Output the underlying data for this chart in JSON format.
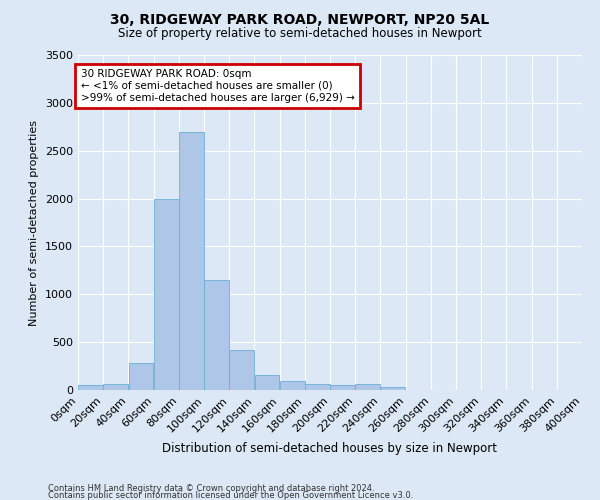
{
  "title": "30, RIDGEWAY PARK ROAD, NEWPORT, NP20 5AL",
  "subtitle": "Size of property relative to semi-detached houses in Newport",
  "xlabel": "Distribution of semi-detached houses by size in Newport",
  "ylabel": "Number of semi-detached properties",
  "footer_line1": "Contains HM Land Registry data © Crown copyright and database right 2024.",
  "footer_line2": "Contains public sector information licensed under the Open Government Licence v3.0.",
  "bin_edges": [
    0,
    20,
    40,
    60,
    80,
    100,
    120,
    140,
    160,
    180,
    200,
    220,
    240,
    260,
    280,
    300,
    320,
    340,
    360,
    380,
    400
  ],
  "bar_heights": [
    50,
    60,
    280,
    2000,
    2700,
    1150,
    420,
    160,
    95,
    65,
    50,
    60,
    30,
    0,
    0,
    0,
    0,
    0,
    0,
    0
  ],
  "bar_color": "#aec6e8",
  "bar_edge_color": "#6baed6",
  "ylim": [
    0,
    3500
  ],
  "xlim": [
    0,
    400
  ],
  "annotation_title": "30 RIDGEWAY PARK ROAD: 0sqm",
  "annotation_line1": "← <1% of semi-detached houses are smaller (0)",
  "annotation_line2": ">99% of semi-detached houses are larger (6,929) →",
  "annotation_box_facecolor": "#ffffff",
  "annotation_box_edgecolor": "#cc0000",
  "background_color": "#dce8f5",
  "grid_color": "#ffffff",
  "tick_labels": [
    "0sqm",
    "20sqm",
    "40sqm",
    "60sqm",
    "80sqm",
    "100sqm",
    "120sqm",
    "140sqm",
    "160sqm",
    "180sqm",
    "200sqm",
    "220sqm",
    "240sqm",
    "260sqm",
    "280sqm",
    "300sqm",
    "320sqm",
    "340sqm",
    "360sqm",
    "380sqm",
    "400sqm"
  ]
}
